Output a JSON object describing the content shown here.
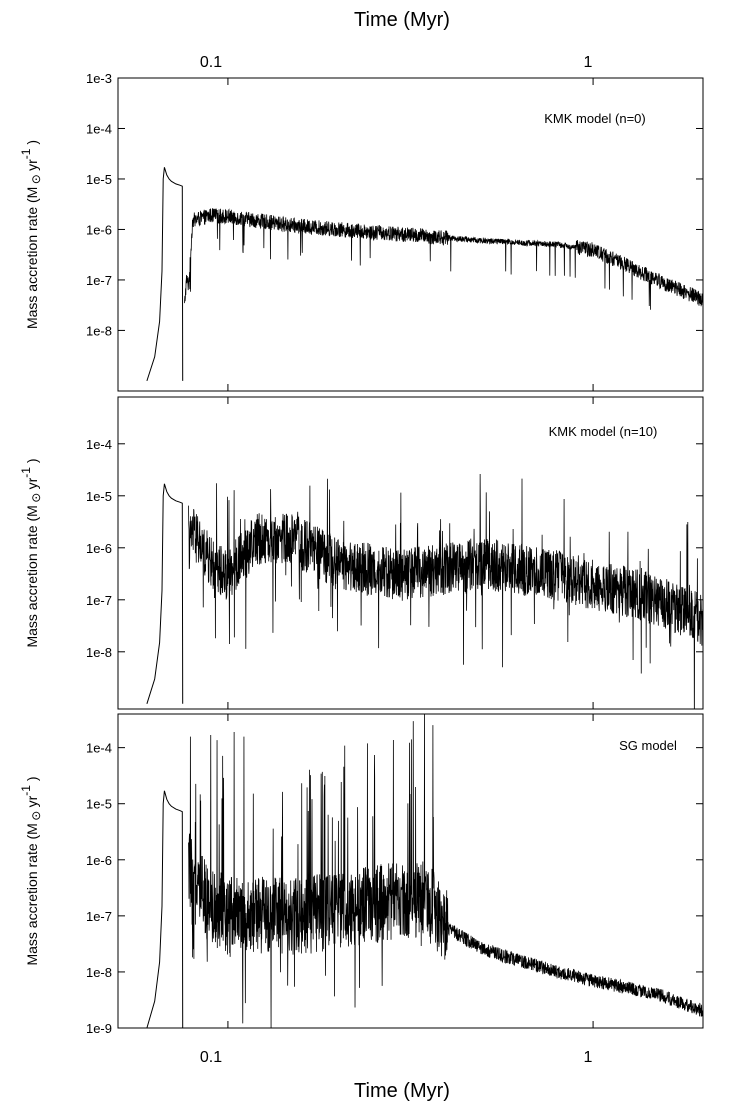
{
  "figure": {
    "top_axis_title": "Time (Myr)",
    "bottom_axis_title": "Time (Myr)",
    "x_tick_labels": [
      "0.1",
      "1"
    ]
  },
  "chart_data": [
    {
      "type": "line",
      "annotation": "KMK model (n=0)",
      "ylabel_main": "Mass accretion rate (M",
      "ylabel_unit": "yr",
      "ylabel_exp": "-1",
      "ylabel_close": ")",
      "xscale": "log",
      "yscale": "log",
      "xlim": [
        0.05,
        2.0
      ],
      "ylim": [
        1e-09,
        0.001
      ],
      "y_ticks": [
        {
          "value": 0.001,
          "label": "1e-3"
        },
        {
          "value": 0.0001,
          "label": "1e-4"
        },
        {
          "value": 1e-05,
          "label": "1e-5"
        },
        {
          "value": 1e-06,
          "label": "1e-6"
        },
        {
          "value": 1e-07,
          "label": "1e-7"
        },
        {
          "value": 1e-08,
          "label": "1e-8"
        }
      ],
      "x": [
        0.06,
        0.063,
        0.065,
        0.066,
        0.0665,
        0.067,
        0.068,
        0.069,
        0.07,
        0.072,
        0.074,
        0.075,
        0.0752,
        0.076,
        0.077,
        0.078,
        0.079,
        0.08,
        0.09,
        0.1,
        0.12,
        0.15,
        0.2,
        0.3,
        0.5,
        0.8,
        1.0,
        1.5,
        2.0
      ],
      "y": [
        1e-09,
        3e-09,
        1.5e-08,
        1.5e-07,
        1e-05,
        1.7e-05,
        1.2e-05,
        1e-05,
        9e-06,
        8e-06,
        7.5e-06,
        7.2e-06,
        1e-09,
        3e-08,
        1e-07,
        8e-08,
        3e-07,
        1.5e-06,
        1.9e-06,
        1.8e-06,
        1.5e-06,
        1.2e-06,
        1e-06,
        8e-07,
        6e-07,
        5e-07,
        4e-07,
        1e-07,
        4e-08
      ],
      "noise_dex": 0.15
    },
    {
      "type": "line",
      "annotation": "KMK model (n=10)",
      "ylabel_main": "Mass accretion rate (M",
      "ylabel_unit": "yr",
      "ylabel_exp": "-1",
      "ylabel_close": ")",
      "xscale": "log",
      "yscale": "log",
      "xlim": [
        0.05,
        2.0
      ],
      "ylim": [
        1e-09,
        0.001
      ],
      "y_ticks": [
        {
          "value": 0.0001,
          "label": "1e-4"
        },
        {
          "value": 1e-05,
          "label": "1e-5"
        },
        {
          "value": 1e-06,
          "label": "1e-6"
        },
        {
          "value": 1e-07,
          "label": "1e-7"
        },
        {
          "value": 1e-08,
          "label": "1e-8"
        }
      ],
      "x": [
        0.06,
        0.063,
        0.065,
        0.066,
        0.0665,
        0.067,
        0.068,
        0.069,
        0.07,
        0.072,
        0.074,
        0.075,
        0.0752,
        0.078,
        0.08,
        0.085,
        0.09,
        0.1,
        0.12,
        0.15,
        0.2,
        0.3,
        0.5,
        0.8,
        1.0,
        1.5,
        2.0
      ],
      "y": [
        1e-09,
        3e-09,
        1.5e-08,
        1.5e-07,
        1e-05,
        1.7e-05,
        1.2e-05,
        1e-05,
        9e-06,
        8e-06,
        7.5e-06,
        7.2e-06,
        1e-09,
        1e-06,
        2e-06,
        1e-06,
        5e-07,
        3e-07,
        1.5e-06,
        1.5e-06,
        5e-07,
        3e-07,
        5e-07,
        3e-07,
        2e-07,
        1e-07,
        4e-08
      ],
      "noise_dex": 0.5
    },
    {
      "type": "line",
      "annotation": "SG model",
      "ylabel_main": "Mass accretion rate (M",
      "ylabel_unit": "yr",
      "ylabel_exp": "-1",
      "ylabel_close": ")",
      "xscale": "log",
      "yscale": "log",
      "xlim": [
        0.05,
        2.0
      ],
      "ylim": [
        1e-09,
        0.001
      ],
      "y_ticks": [
        {
          "value": 0.0001,
          "label": "1e-4"
        },
        {
          "value": 1e-05,
          "label": "1e-5"
        },
        {
          "value": 1e-06,
          "label": "1e-6"
        },
        {
          "value": 1e-07,
          "label": "1e-7"
        },
        {
          "value": 1e-08,
          "label": "1e-8"
        },
        {
          "value": 1e-09,
          "label": "1e-9"
        }
      ],
      "x": [
        0.06,
        0.063,
        0.065,
        0.066,
        0.0665,
        0.067,
        0.068,
        0.069,
        0.07,
        0.072,
        0.074,
        0.075,
        0.0752,
        0.078,
        0.08,
        0.09,
        0.1,
        0.12,
        0.15,
        0.2,
        0.3,
        0.35,
        0.4,
        0.5,
        0.8,
        1.0,
        1.5,
        2.0
      ],
      "y": [
        1e-09,
        3e-09,
        1.5e-08,
        1.5e-07,
        1e-05,
        1.7e-05,
        1.2e-05,
        1e-05,
        9e-06,
        8e-06,
        7.5e-06,
        7.2e-06,
        1e-09,
        8e-07,
        4e-07,
        1.5e-07,
        1e-07,
        1e-07,
        1e-07,
        1.2e-07,
        2e-07,
        2e-07,
        6e-08,
        2.5e-08,
        1e-08,
        7e-09,
        4e-09,
        2e-09
      ],
      "noise_dex": 0.7
    }
  ]
}
